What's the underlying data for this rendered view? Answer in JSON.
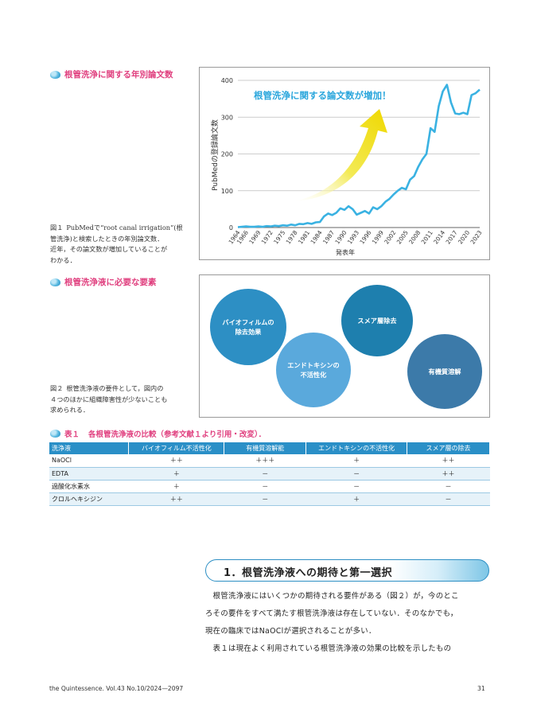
{
  "section1": {
    "heading": "根管洗浄に関する年別論文数"
  },
  "figure1": {
    "caption_label": "図１",
    "caption_lines": [
      "PubMedで“root canal irrigation”(根",
      "管洗浄)と検索したときの年別論文数．",
      "近年，その論文数が増加していることが",
      "わかる．"
    ],
    "annotation": "根管洗浄に関する論文数が増加！"
  },
  "chart_data": {
    "type": "line",
    "xlabel": "発表年",
    "ylabel": "PubMedの登録論文数",
    "ylim": [
      0,
      400
    ],
    "yticks": [
      0,
      100,
      200,
      300,
      400
    ],
    "x_tick_labels": [
      "1964",
      "1966",
      "1969",
      "1972",
      "1975",
      "1978",
      "1981",
      "1984",
      "1987",
      "1990",
      "1993",
      "1996",
      "1999",
      "2002",
      "2005",
      "2008",
      "2011",
      "2014",
      "2017",
      "2020",
      "2023"
    ],
    "grid": true,
    "x": [
      1964,
      1965,
      1966,
      1967,
      1968,
      1969,
      1970,
      1971,
      1972,
      1973,
      1974,
      1975,
      1976,
      1977,
      1978,
      1979,
      1980,
      1981,
      1982,
      1983,
      1984,
      1985,
      1986,
      1987,
      1988,
      1989,
      1990,
      1991,
      1992,
      1993,
      1994,
      1995,
      1996,
      1997,
      1998,
      1999,
      2000,
      2001,
      2002,
      2003,
      2004,
      2005,
      2006,
      2007,
      2008,
      2009,
      2010,
      2011,
      2012,
      2013,
      2014,
      2015,
      2016,
      2017,
      2018,
      2019,
      2020,
      2021,
      2022,
      2023
    ],
    "values": [
      1,
      2,
      3,
      2,
      2,
      3,
      2,
      4,
      3,
      5,
      4,
      6,
      5,
      8,
      6,
      10,
      9,
      12,
      10,
      14,
      15,
      30,
      38,
      34,
      40,
      52,
      48,
      58,
      50,
      35,
      40,
      45,
      38,
      55,
      50,
      58,
      70,
      78,
      90,
      100,
      108,
      104,
      130,
      140,
      165,
      185,
      200,
      270,
      260,
      330,
      370,
      388,
      340,
      310,
      308,
      312,
      308,
      360,
      365,
      375
    ]
  },
  "section2": {
    "heading": "根管洗浄液に必要な要素"
  },
  "figure2": {
    "caption_label": "図２",
    "caption_lines": [
      "根管洗浄液の要件として，図内の",
      "４つのほかに組織障害性が少ないことも",
      "求められる．"
    ],
    "circles": [
      {
        "label": "バイオフィルムの\n除去効果",
        "color": "#2d8fc4"
      },
      {
        "label": "スメア層除去",
        "color": "#1e7fae"
      },
      {
        "label": "エンドトキシンの\n不活性化",
        "color": "#5aa9dc"
      },
      {
        "label": "有機質溶解",
        "color": "#3c7aa9"
      }
    ]
  },
  "table1": {
    "label": "表１",
    "title": "各根管洗浄液の比較（参考文献１より引用・改変）．",
    "headers": [
      "洗浄液",
      "バイオフィルム不活性化",
      "有機質溶解能",
      "エンドトキシンの不活性化",
      "スメア層の除去"
    ],
    "rows": [
      [
        "NaOCl",
        "＋＋",
        "＋＋＋",
        "＋",
        "＋＋"
      ],
      [
        "EDTA",
        "＋",
        "－",
        "－",
        "＋＋"
      ],
      [
        "過酸化水素水",
        "＋",
        "－",
        "－",
        "－"
      ],
      [
        "クロルヘキシジン",
        "＋＋",
        "－",
        "＋",
        "－"
      ]
    ]
  },
  "heading1": {
    "text": "1．根管洗浄液への期待と第一選択"
  },
  "body": {
    "lines": [
      "　根管洗浄液にはいくつかの期待される要件がある（図２）が，今のとこ",
      "ろその要件をすべて満たす根管洗浄液は存在していない．そのなかでも，",
      "現在の臨床ではNaOClが選択されることが多い．",
      "　表１は現在よく利用されている根管洗浄液の効果の比較を示したもの"
    ]
  },
  "footer": {
    "journal": "the Quintessence. Vol.43 No.10/2024—2097",
    "page": "31"
  },
  "colors": {
    "accent_pink": "#e0407f",
    "line_blue": "#3ab2e2",
    "arrow_yellow": "#f1e21e",
    "table_header": "#2a8fc7"
  }
}
